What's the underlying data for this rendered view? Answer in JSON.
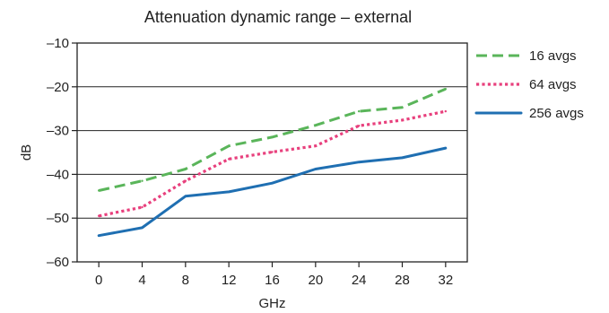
{
  "chart_data": {
    "type": "line",
    "title": "Attenuation dynamic range – external",
    "xlabel": "GHz",
    "ylabel": "dB",
    "x": [
      0,
      4,
      8,
      12,
      16,
      20,
      24,
      28,
      32
    ],
    "xlim": [
      -2,
      34
    ],
    "ylim": [
      -60,
      -10
    ],
    "xticks": [
      0,
      4,
      8,
      12,
      16,
      20,
      24,
      28,
      32
    ],
    "xtick_labels": [
      "0",
      "4",
      "8",
      "12",
      "16",
      "20",
      "24",
      "28",
      "32"
    ],
    "yticks": [
      -60,
      -50,
      -40,
      -30,
      -20,
      -10
    ],
    "ytick_labels": [
      "–60",
      "–50",
      "–40",
      "–30",
      "–20",
      "–10"
    ],
    "grid": "horizontal",
    "legend_position": "right",
    "series": [
      {
        "name": "16 avgs",
        "color": "#5ab55a",
        "style": "dashed",
        "values": [
          -43.7,
          -41.5,
          -38.8,
          -33.5,
          -31.5,
          -28.8,
          -25.6,
          -24.7,
          -20.5
        ]
      },
      {
        "name": "64 avgs",
        "color": "#e8407d",
        "style": "dotted",
        "values": [
          -49.5,
          -47.5,
          -41.5,
          -36.5,
          -34.9,
          -33.5,
          -28.9,
          -27.6,
          -25.6
        ]
      },
      {
        "name": "256 avgs",
        "color": "#1f6fb2",
        "style": "solid",
        "values": [
          -54,
          -52.2,
          -45,
          -44,
          -42,
          -38.8,
          -37.2,
          -36.2,
          -34
        ]
      }
    ]
  }
}
